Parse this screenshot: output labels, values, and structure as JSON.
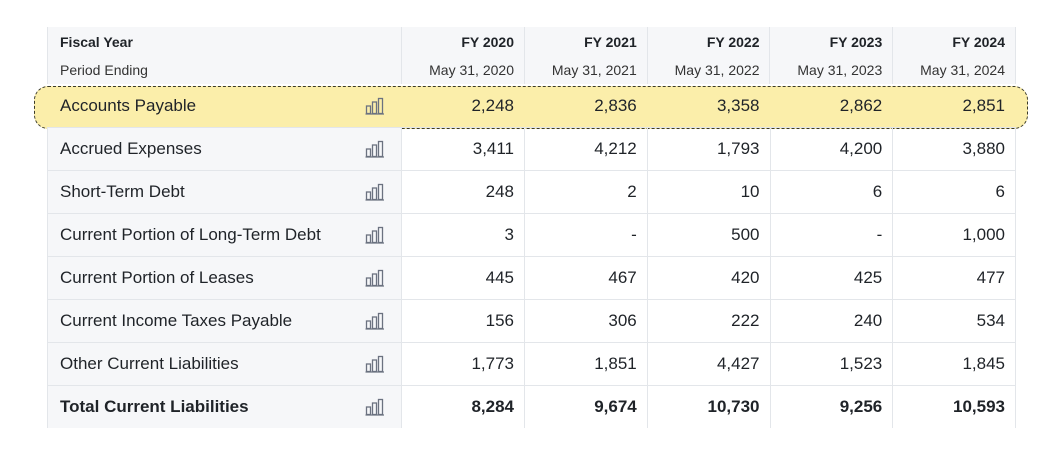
{
  "header": {
    "fiscal_year_label": "Fiscal Year",
    "period_ending_label": "Period Ending",
    "years": [
      "FY 2020",
      "FY 2021",
      "FY 2022",
      "FY 2023",
      "FY 2024"
    ],
    "dates": [
      "May 31, 2020",
      "May 31, 2021",
      "May 31, 2022",
      "May 31, 2023",
      "May 31, 2024"
    ]
  },
  "rows": [
    {
      "label": "Accounts Payable",
      "values": [
        "2,248",
        "2,836",
        "3,358",
        "2,862",
        "2,851"
      ]
    },
    {
      "label": "Accrued Expenses",
      "values": [
        "3,411",
        "4,212",
        "1,793",
        "4,200",
        "3,880"
      ]
    },
    {
      "label": "Short-Term Debt",
      "values": [
        "248",
        "2",
        "10",
        "6",
        "6"
      ]
    },
    {
      "label": "Current Portion of Long-Term Debt",
      "values": [
        "3",
        "-",
        "500",
        "-",
        "1,000"
      ]
    },
    {
      "label": "Current Portion of Leases",
      "values": [
        "445",
        "467",
        "420",
        "425",
        "477"
      ]
    },
    {
      "label": "Current Income Taxes Payable",
      "values": [
        "156",
        "306",
        "222",
        "240",
        "534"
      ]
    },
    {
      "label": "Other Current Liabilities",
      "values": [
        "1,773",
        "1,851",
        "4,427",
        "1,523",
        "1,845"
      ]
    },
    {
      "label": "Total Current Liabilities",
      "values": [
        "8,284",
        "9,674",
        "10,730",
        "9,256",
        "10,593"
      ]
    }
  ],
  "highlight_color": "#fbeeaa"
}
